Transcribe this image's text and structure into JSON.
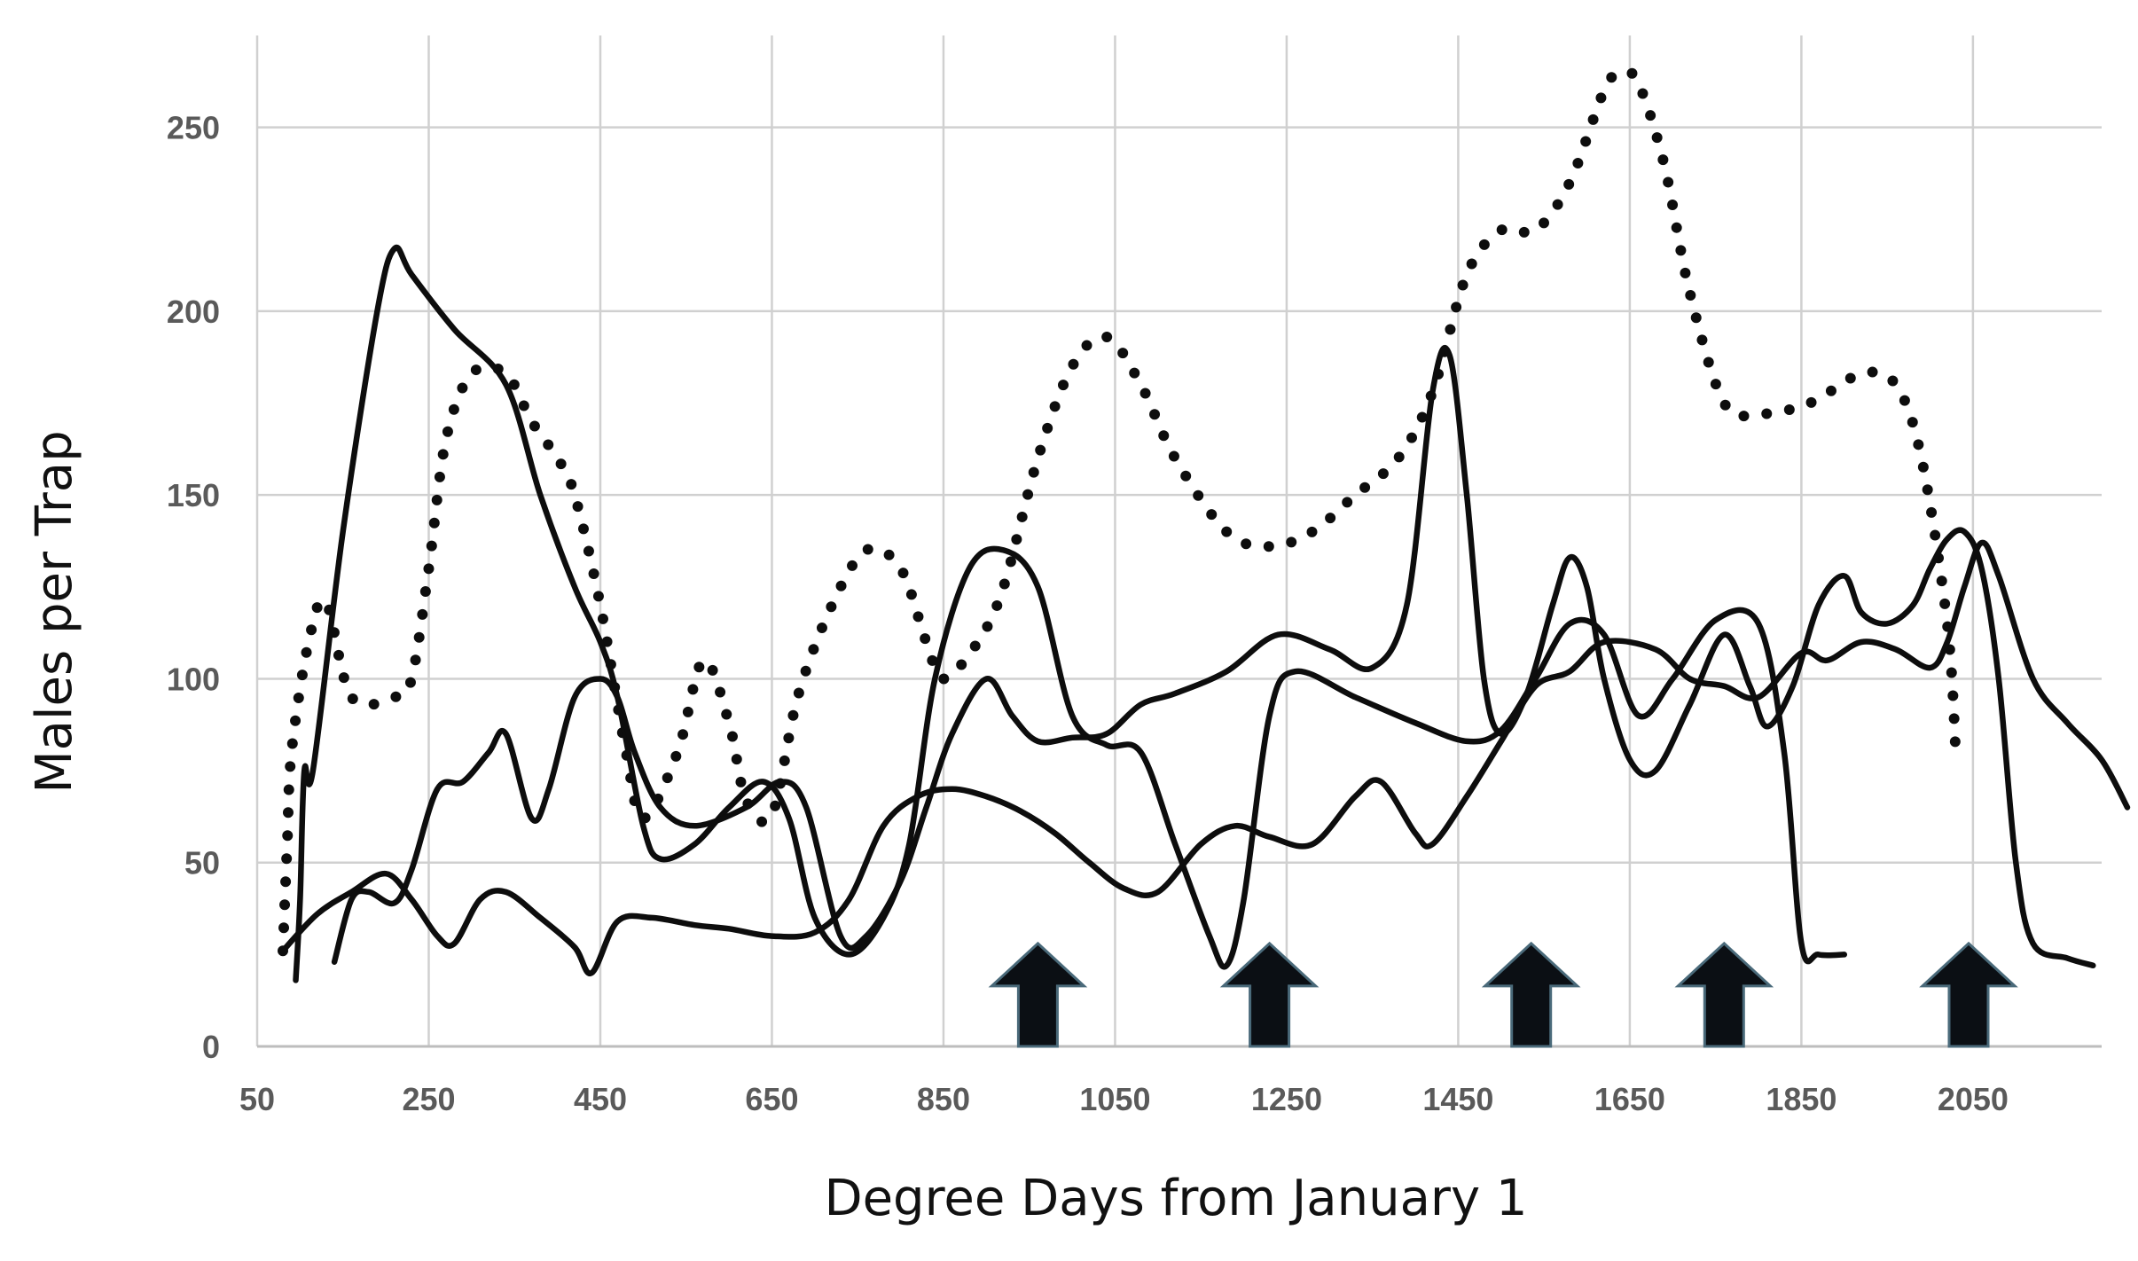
{
  "chart_data": {
    "type": "line",
    "title": "",
    "xlabel": "Degree Days from January 1",
    "ylabel": "Males per Trap",
    "xlim": [
      50,
      2200
    ],
    "ylim": [
      0,
      275
    ],
    "x_ticks": [
      "50",
      "250",
      "450",
      "650",
      "850",
      "1050",
      "1250",
      "1450",
      "1650",
      "1850",
      "2050"
    ],
    "y_ticks": [
      "0",
      "50",
      "100",
      "150",
      "200",
      "250"
    ],
    "grid": "on",
    "legend": "none",
    "series": [
      {
        "style": "dotted",
        "points": [
          [
            80,
            26
          ],
          [
            85,
            55
          ],
          [
            90,
            80
          ],
          [
            110,
            110
          ],
          [
            130,
            121
          ],
          [
            160,
            95
          ],
          [
            210,
            95
          ],
          [
            230,
            100
          ],
          [
            250,
            130
          ],
          [
            270,
            165
          ],
          [
            300,
            183
          ],
          [
            340,
            183
          ],
          [
            370,
            170
          ],
          [
            400,
            160
          ],
          [
            420,
            150
          ],
          [
            450,
            120
          ],
          [
            480,
            80
          ],
          [
            500,
            62
          ],
          [
            540,
            80
          ],
          [
            570,
            105
          ],
          [
            600,
            88
          ],
          [
            620,
            67
          ],
          [
            650,
            63
          ],
          [
            680,
            95
          ],
          [
            720,
            120
          ],
          [
            760,
            135
          ],
          [
            800,
            130
          ],
          [
            830,
            110
          ],
          [
            850,
            100
          ],
          [
            890,
            110
          ],
          [
            920,
            125
          ],
          [
            960,
            160
          ],
          [
            1000,
            185
          ],
          [
            1040,
            193
          ],
          [
            1080,
            180
          ],
          [
            1120,
            160
          ],
          [
            1180,
            140
          ],
          [
            1230,
            136
          ],
          [
            1280,
            140
          ],
          [
            1330,
            150
          ],
          [
            1380,
            160
          ],
          [
            1420,
            178
          ],
          [
            1460,
            210
          ],
          [
            1500,
            222
          ],
          [
            1540,
            222
          ],
          [
            1580,
            235
          ],
          [
            1620,
            260
          ],
          [
            1640,
            265
          ],
          [
            1660,
            262
          ],
          [
            1690,
            240
          ],
          [
            1720,
            205
          ],
          [
            1760,
            175
          ],
          [
            1800,
            172
          ],
          [
            1860,
            175
          ],
          [
            1920,
            183
          ],
          [
            1960,
            180
          ],
          [
            1990,
            160
          ],
          [
            2020,
            115
          ],
          [
            2030,
            80
          ]
        ]
      },
      {
        "style": "solid",
        "points": [
          [
            95,
            18
          ],
          [
            100,
            40
          ],
          [
            105,
            75
          ],
          [
            115,
            75
          ],
          [
            150,
            140
          ],
          [
            190,
            200
          ],
          [
            210,
            217
          ],
          [
            230,
            210
          ],
          [
            280,
            195
          ],
          [
            340,
            180
          ],
          [
            380,
            150
          ],
          [
            420,
            125
          ],
          [
            450,
            110
          ],
          [
            470,
            95
          ],
          [
            500,
            60
          ],
          [
            520,
            51
          ],
          [
            560,
            55
          ],
          [
            600,
            65
          ],
          [
            640,
            72
          ],
          [
            670,
            62
          ],
          [
            700,
            35
          ],
          [
            740,
            25
          ],
          [
            780,
            35
          ],
          [
            810,
            55
          ],
          [
            840,
            100
          ],
          [
            880,
            130
          ],
          [
            920,
            135
          ],
          [
            960,
            125
          ],
          [
            1000,
            90
          ],
          [
            1040,
            82
          ],
          [
            1080,
            80
          ],
          [
            1120,
            55
          ],
          [
            1160,
            30
          ],
          [
            1180,
            22
          ],
          [
            1200,
            40
          ],
          [
            1230,
            90
          ],
          [
            1260,
            102
          ],
          [
            1330,
            95
          ],
          [
            1400,
            88
          ],
          [
            1460,
            83
          ],
          [
            1500,
            86
          ],
          [
            1540,
            100
          ],
          [
            1580,
            115
          ],
          [
            1620,
            112
          ],
          [
            1660,
            90
          ],
          [
            1700,
            100
          ],
          [
            1750,
            116
          ],
          [
            1800,
            115
          ],
          [
            1830,
            80
          ],
          [
            1850,
            28
          ],
          [
            1870,
            25
          ],
          [
            1900,
            25
          ]
        ]
      },
      {
        "style": "solid",
        "points": [
          [
            80,
            26
          ],
          [
            120,
            36
          ],
          [
            160,
            42
          ],
          [
            200,
            47
          ],
          [
            230,
            40
          ],
          [
            260,
            30
          ],
          [
            280,
            28
          ],
          [
            310,
            40
          ],
          [
            340,
            42
          ],
          [
            380,
            35
          ],
          [
            420,
            27
          ],
          [
            440,
            20
          ],
          [
            470,
            34
          ],
          [
            510,
            35
          ],
          [
            560,
            33
          ],
          [
            600,
            32
          ],
          [
            650,
            30
          ],
          [
            700,
            31
          ],
          [
            740,
            40
          ],
          [
            780,
            60
          ],
          [
            820,
            68
          ],
          [
            860,
            70
          ],
          [
            900,
            68
          ],
          [
            940,
            64
          ],
          [
            980,
            58
          ],
          [
            1020,
            50
          ],
          [
            1060,
            43
          ],
          [
            1100,
            42
          ],
          [
            1150,
            55
          ],
          [
            1190,
            60
          ],
          [
            1230,
            57
          ],
          [
            1280,
            55
          ],
          [
            1330,
            68
          ],
          [
            1360,
            72
          ],
          [
            1400,
            58
          ],
          [
            1420,
            55
          ],
          [
            1460,
            68
          ],
          [
            1500,
            83
          ],
          [
            1540,
            98
          ],
          [
            1580,
            102
          ],
          [
            1620,
            110
          ],
          [
            1680,
            108
          ],
          [
            1720,
            100
          ],
          [
            1760,
            98
          ],
          [
            1800,
            95
          ],
          [
            1850,
            107
          ],
          [
            1880,
            105
          ],
          [
            1920,
            110
          ],
          [
            1960,
            108
          ],
          [
            2000,
            103
          ],
          [
            2020,
            110
          ],
          [
            2040,
            125
          ],
          [
            2060,
            137
          ],
          [
            2080,
            128
          ],
          [
            2120,
            100
          ],
          [
            2160,
            88
          ],
          [
            2200,
            78
          ],
          [
            2230,
            65
          ]
        ]
      },
      {
        "style": "solid",
        "points": [
          [
            140,
            23
          ],
          [
            160,
            40
          ],
          [
            180,
            42
          ],
          [
            210,
            39
          ],
          [
            230,
            48
          ],
          [
            260,
            70
          ],
          [
            290,
            72
          ],
          [
            320,
            80
          ],
          [
            340,
            85
          ],
          [
            370,
            62
          ],
          [
            390,
            70
          ],
          [
            420,
            95
          ],
          [
            450,
            100
          ],
          [
            470,
            95
          ],
          [
            490,
            80
          ],
          [
            520,
            65
          ],
          [
            560,
            60
          ],
          [
            620,
            65
          ],
          [
            660,
            72
          ],
          [
            690,
            65
          ],
          [
            730,
            30
          ],
          [
            760,
            30
          ],
          [
            800,
            45
          ],
          [
            830,
            65
          ],
          [
            860,
            85
          ],
          [
            900,
            100
          ],
          [
            930,
            90
          ],
          [
            960,
            83
          ],
          [
            1000,
            84
          ],
          [
            1040,
            85
          ],
          [
            1080,
            93
          ],
          [
            1120,
            96
          ],
          [
            1180,
            102
          ],
          [
            1240,
            112
          ],
          [
            1300,
            108
          ],
          [
            1350,
            103
          ],
          [
            1390,
            120
          ],
          [
            1420,
            178
          ],
          [
            1440,
            188
          ],
          [
            1460,
            150
          ],
          [
            1480,
            100
          ],
          [
            1500,
            85
          ],
          [
            1530,
            96
          ],
          [
            1560,
            120
          ],
          [
            1580,
            133
          ],
          [
            1600,
            125
          ],
          [
            1620,
            100
          ],
          [
            1650,
            78
          ],
          [
            1680,
            75
          ],
          [
            1720,
            93
          ],
          [
            1760,
            112
          ],
          [
            1790,
            98
          ],
          [
            1810,
            87
          ],
          [
            1840,
            98
          ],
          [
            1870,
            120
          ],
          [
            1900,
            128
          ],
          [
            1920,
            118
          ],
          [
            1950,
            115
          ],
          [
            1980,
            120
          ],
          [
            2000,
            130
          ],
          [
            2020,
            138
          ],
          [
            2040,
            140
          ],
          [
            2060,
            130
          ],
          [
            2080,
            100
          ],
          [
            2100,
            50
          ],
          [
            2120,
            28
          ],
          [
            2160,
            24
          ],
          [
            2190,
            22
          ]
        ]
      }
    ],
    "annotations": {
      "arrow_x_positions": [
        960,
        1230,
        1535,
        1760,
        2045
      ]
    }
  }
}
